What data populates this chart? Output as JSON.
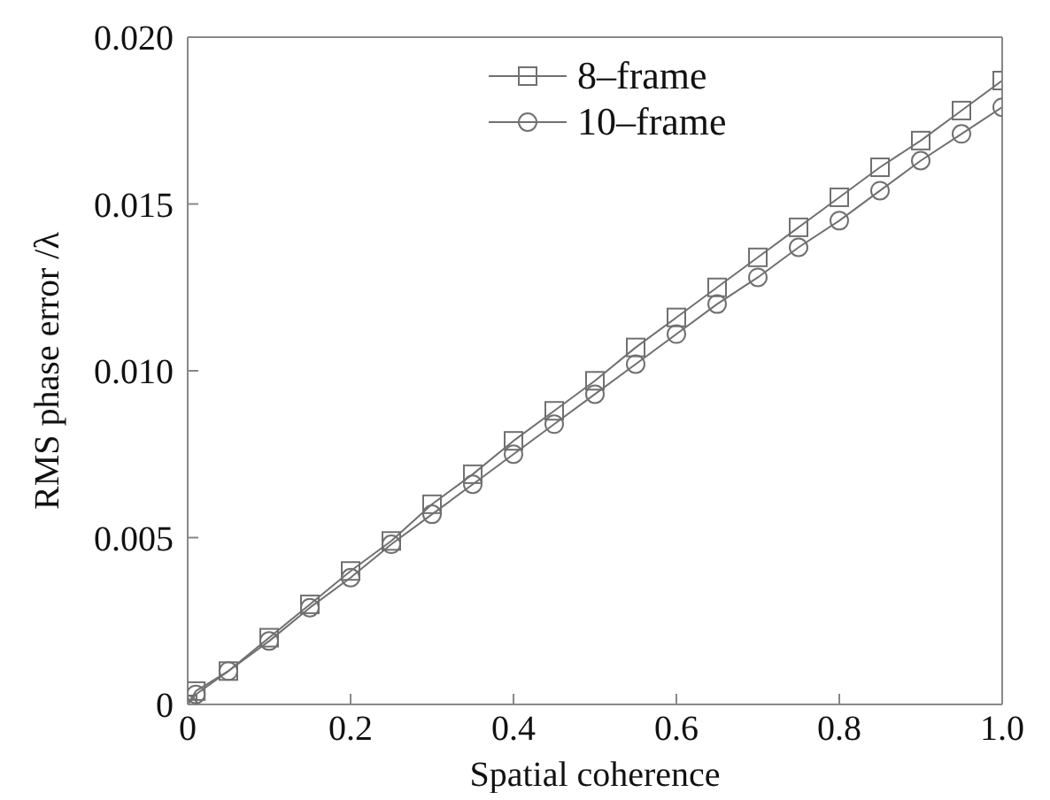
{
  "chart_data": {
    "type": "line",
    "xlabel": "Spatial coherence",
    "ylabel": "RMS phase error /λ",
    "xlim": [
      0,
      1
    ],
    "xticks": [
      0,
      0.2,
      0.4,
      {
        "value": 0.6,
        "label": "0.6"
      },
      {
        "value": 0.8,
        "label": "0.8"
      },
      {
        "value": 1,
        "label": "1.0"
      }
    ],
    "ylim": [
      0,
      0.02
    ],
    "yticks": [
      0,
      {
        "value": 0.005,
        "label": "0.005"
      },
      {
        "value": 0.01,
        "label": "0.010"
      },
      {
        "value": 0.015,
        "label": "0.015"
      },
      {
        "value": 0.02,
        "label": "0.020"
      }
    ],
    "grid": false,
    "legend": "top",
    "line_style": "solid",
    "x": [
      0,
      0.01,
      0.05,
      0.1,
      0.15,
      0.2,
      0.25,
      0.3,
      0.35,
      0.4,
      0.45,
      0.5,
      0.55,
      0.6,
      0.65,
      0.7,
      0.75,
      0.8,
      0.85,
      0.9,
      0.95,
      1.0
    ],
    "series": [
      {
        "name": "8–frame",
        "color": "#707070",
        "marker": "square",
        "values": [
          0,
          0.0004,
          0.001,
          0.002,
          0.003,
          0.004,
          0.0049,
          0.006,
          0.0069,
          0.0079,
          0.0088,
          0.0097,
          0.0107,
          0.0116,
          0.0125,
          0.0134,
          0.0143,
          0.0152,
          0.0161,
          0.0169,
          0.0178,
          0.0187
        ]
      },
      {
        "name": "10–frame",
        "color": "#707070",
        "marker": "circle",
        "values": [
          0,
          0.0003,
          0.001,
          0.0019,
          0.0029,
          0.0038,
          0.0048,
          0.0057,
          0.0066,
          0.0075,
          0.0084,
          0.0093,
          0.0102,
          0.0111,
          0.012,
          0.0128,
          0.0137,
          0.0145,
          0.0154,
          0.0163,
          0.0171,
          0.0179
        ]
      }
    ]
  }
}
